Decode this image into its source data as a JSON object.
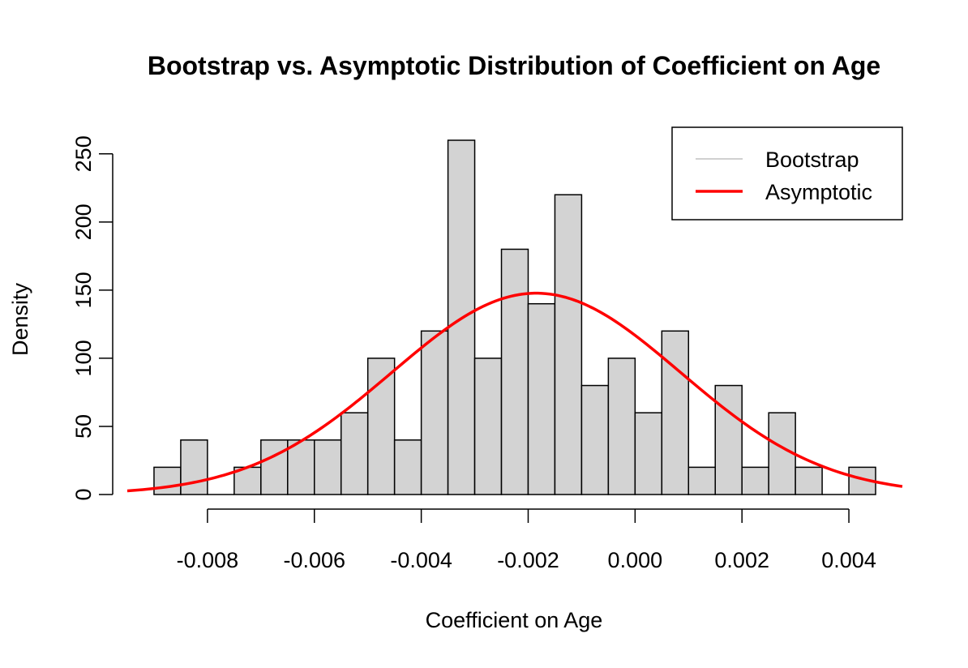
{
  "chart_data": {
    "type": "bar",
    "title": "Bootstrap vs. Asymptotic Distribution of Coefficient on Age",
    "xlabel": "Coefficient on Age",
    "ylabel": "Density",
    "xlim": [
      -0.0095,
      0.005
    ],
    "ylim": [
      0,
      260
    ],
    "x_ticks": [
      "-0.008",
      "-0.006",
      "-0.004",
      "-0.002",
      "0.000",
      "0.002",
      "0.004"
    ],
    "x_tick_values": [
      -0.008,
      -0.006,
      -0.004,
      -0.002,
      0.0,
      0.002,
      0.004
    ],
    "y_ticks": [
      "0",
      "50",
      "100",
      "150",
      "200",
      "250"
    ],
    "y_tick_values": [
      0,
      50,
      100,
      150,
      200,
      250
    ],
    "bin_width": 0.0005,
    "bins": [
      {
        "left": -0.009,
        "density": 20
      },
      {
        "left": -0.0085,
        "density": 40
      },
      {
        "left": -0.008,
        "density": 0
      },
      {
        "left": -0.0075,
        "density": 20
      },
      {
        "left": -0.007,
        "density": 40
      },
      {
        "left": -0.0065,
        "density": 40
      },
      {
        "left": -0.006,
        "density": 40
      },
      {
        "left": -0.0055,
        "density": 60
      },
      {
        "left": -0.005,
        "density": 100
      },
      {
        "left": -0.0045,
        "density": 40
      },
      {
        "left": -0.004,
        "density": 120
      },
      {
        "left": -0.0035,
        "density": 260
      },
      {
        "left": -0.003,
        "density": 100
      },
      {
        "left": -0.0025,
        "density": 180
      },
      {
        "left": -0.002,
        "density": 140
      },
      {
        "left": -0.0015,
        "density": 220
      },
      {
        "left": -0.001,
        "density": 80
      },
      {
        "left": -0.0005,
        "density": 100
      },
      {
        "left": 0.0,
        "density": 60
      },
      {
        "left": 0.0005,
        "density": 120
      },
      {
        "left": 0.001,
        "density": 20
      },
      {
        "left": 0.0015,
        "density": 80
      },
      {
        "left": 0.002,
        "density": 20
      },
      {
        "left": 0.0025,
        "density": 60
      },
      {
        "left": 0.003,
        "density": 20
      },
      {
        "left": 0.0035,
        "density": 0
      },
      {
        "left": 0.004,
        "density": 20
      }
    ],
    "normal_curve": {
      "mean": -0.00185,
      "sd": 0.0027
    },
    "legend": {
      "placement": "top-right",
      "entries": [
        {
          "label": "Bootstrap",
          "color": "#c0c0c0"
        },
        {
          "label": "Asymptotic",
          "color": "#ff0000"
        }
      ]
    },
    "colors": {
      "bar_fill": "#d3d3d3",
      "bar_stroke": "#000000",
      "curve": "#ff0000"
    }
  }
}
